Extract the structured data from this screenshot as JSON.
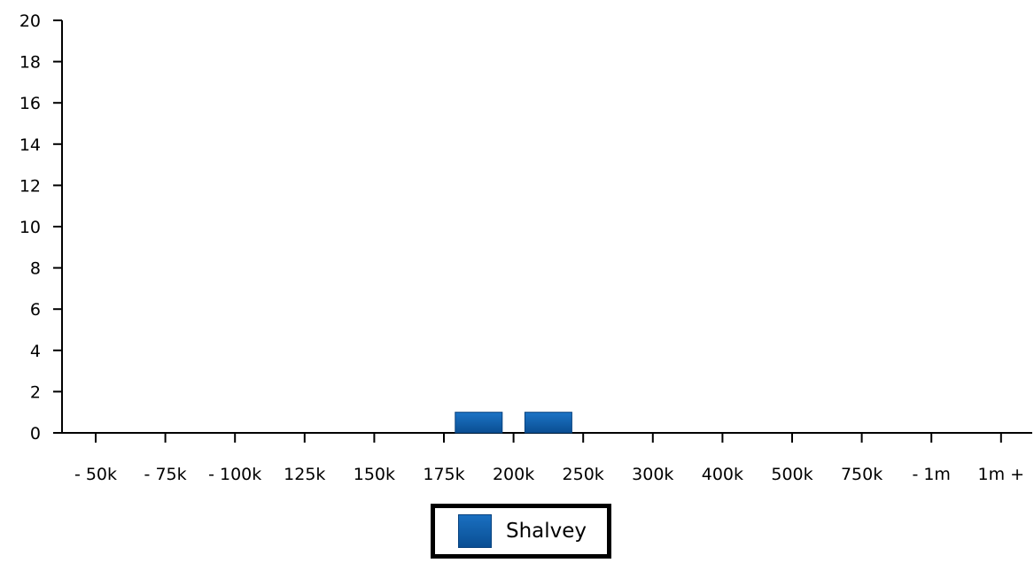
{
  "chart_data": {
    "type": "bar",
    "categories": [
      "- 50k",
      "- 75k",
      "- 100k",
      "125k",
      "150k",
      "175k",
      "200k",
      "250k",
      "300k",
      "400k",
      "500k",
      "750k",
      "- 1m",
      "1m +"
    ],
    "tick_labels": [
      "- 50k",
      "- 75k",
      "- 100k",
      "125k",
      "150k",
      "175k",
      "200k",
      "250k",
      "300k",
      "400k",
      "500k",
      "750k",
      "- 1m",
      "1m +"
    ],
    "series": [
      {
        "name": "Shalvey",
        "values": [
          0,
          0,
          0,
          0,
          0,
          0,
          1,
          1,
          0,
          0,
          0,
          0,
          0,
          0
        ],
        "color": "#0b5aa8"
      }
    ],
    "ylim": [
      0,
      20
    ],
    "yticks": [
      0,
      2,
      4,
      6,
      8,
      10,
      12,
      14,
      16,
      18,
      20
    ],
    "grid": false,
    "legend_position": "bottom-center"
  },
  "legend": {
    "label": "Shalvey",
    "color": "#0b5aa8"
  }
}
